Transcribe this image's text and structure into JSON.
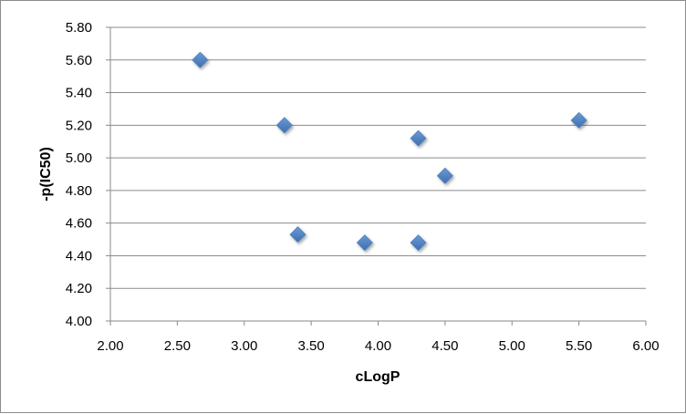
{
  "chart_data": {
    "type": "scatter",
    "title": "",
    "xlabel": "cLogP",
    "ylabel": "-p(IC50)",
    "xlim": [
      2.0,
      6.0
    ],
    "ylim": [
      4.0,
      5.8
    ],
    "x_ticks": [
      "2.00",
      "2.50",
      "3.00",
      "3.50",
      "4.00",
      "4.50",
      "5.00",
      "5.50",
      "6.00"
    ],
    "y_ticks": [
      "4.00",
      "4.20",
      "4.40",
      "4.60",
      "4.80",
      "5.00",
      "5.20",
      "5.40",
      "5.60",
      "5.80"
    ],
    "grid": "horizontal",
    "legend": "none",
    "marker": "diamond",
    "series": [
      {
        "color": "#4f81bd",
        "points": [
          {
            "x": 2.67,
            "y": 5.6
          },
          {
            "x": 3.3,
            "y": 5.2
          },
          {
            "x": 3.4,
            "y": 4.53
          },
          {
            "x": 3.9,
            "y": 4.48
          },
          {
            "x": 4.3,
            "y": 5.12
          },
          {
            "x": 4.3,
            "y": 4.48
          },
          {
            "x": 4.5,
            "y": 4.89
          },
          {
            "x": 5.5,
            "y": 5.23
          }
        ]
      }
    ]
  }
}
